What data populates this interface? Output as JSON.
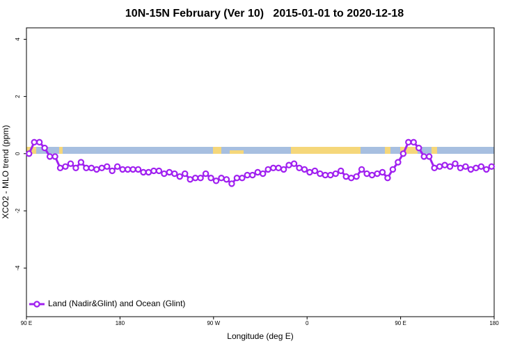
{
  "chart_data": {
    "type": "line",
    "title": "10N-15N February (Ver 10)   2015-01-01 to 2020-12-18",
    "x_label": "Longitude (deg E)",
    "y_label": "XCO2 - MLO trend (ppm)",
    "x": [
      92.5,
      97.5,
      102.5,
      107.5,
      112.5,
      117.5,
      122.5,
      127.5,
      132.5,
      137.5,
      142.5,
      147.5,
      152.5,
      157.5,
      162.5,
      167.5,
      172.5,
      177.5,
      182.5,
      187.5,
      192.5,
      197.5,
      202.5,
      207.5,
      212.5,
      217.5,
      222.5,
      227.5,
      232.5,
      237.5,
      242.5,
      247.5,
      252.5,
      257.5,
      262.5,
      267.5,
      272.5,
      277.5,
      282.5,
      287.5,
      292.5,
      297.5,
      302.5,
      307.5,
      312.5,
      317.5,
      322.5,
      327.5,
      332.5,
      337.5,
      342.5,
      347.5,
      352.5,
      357.5,
      362.5,
      367.5,
      372.5,
      377.5,
      382.5,
      387.5,
      392.5,
      397.5,
      402.5,
      407.5,
      412.5,
      417.5,
      422.5,
      427.5,
      432.5,
      437.5,
      442.5,
      447.5,
      452.5,
      457.5,
      462.5,
      467.5,
      472.5,
      477.5,
      482.5,
      487.5,
      492.5,
      497.5,
      502.5,
      507.5,
      512.5,
      517.5,
      522.5,
      527.5,
      532.5,
      537.5
    ],
    "series": [
      {
        "name": "Land (Nadir&Glint) and Ocean (Glint)",
        "color": "#a020f0",
        "values": [
          0,
          0.4,
          0.4,
          0.2,
          -0.1,
          -0.1,
          -0.5,
          -0.45,
          -0.35,
          -0.5,
          -0.3,
          -0.5,
          -0.5,
          -0.55,
          -0.5,
          -0.45,
          -0.6,
          -0.45,
          -0.55,
          -0.55,
          -0.55,
          -0.55,
          -0.65,
          -0.65,
          -0.6,
          -0.6,
          -0.7,
          -0.65,
          -0.7,
          -0.8,
          -0.7,
          -0.9,
          -0.85,
          -0.85,
          -0.7,
          -0.85,
          -0.95,
          -0.85,
          -0.9,
          -1.05,
          -0.85,
          -0.85,
          -0.75,
          -0.75,
          -0.65,
          -0.7,
          -0.55,
          -0.5,
          -0.5,
          -0.55,
          -0.4,
          -0.35,
          -0.5,
          -0.55,
          -0.65,
          -0.6,
          -0.7,
          -0.75,
          -0.75,
          -0.7,
          -0.6,
          -0.8,
          -0.85,
          -0.8,
          -0.55,
          -0.7,
          -0.75,
          -0.7,
          -0.65,
          -0.85,
          -0.55,
          -0.3,
          0,
          0.4,
          0.4,
          0.2,
          -0.1,
          -0.1,
          -0.5,
          -0.45,
          -0.4,
          -0.45,
          -0.35,
          -0.5,
          -0.45,
          -0.55,
          -0.5,
          -0.45,
          -0.55,
          -0.45
        ]
      }
    ],
    "xlim": [
      90,
      540
    ],
    "xticks": [
      {
        "value": 90,
        "label": "90 E"
      },
      180,
      {
        "value": 270,
        "label": "90 W"
      },
      {
        "value": 360,
        "label": "0"
      },
      {
        "value": 450,
        "label": "90 E"
      },
      {
        "value": 540,
        "label": "180"
      }
    ],
    "ylim": [
      -5.7,
      4.4
    ],
    "yticks": [
      -4,
      -2,
      0,
      2,
      4
    ],
    "legend": "bottom-left"
  }
}
